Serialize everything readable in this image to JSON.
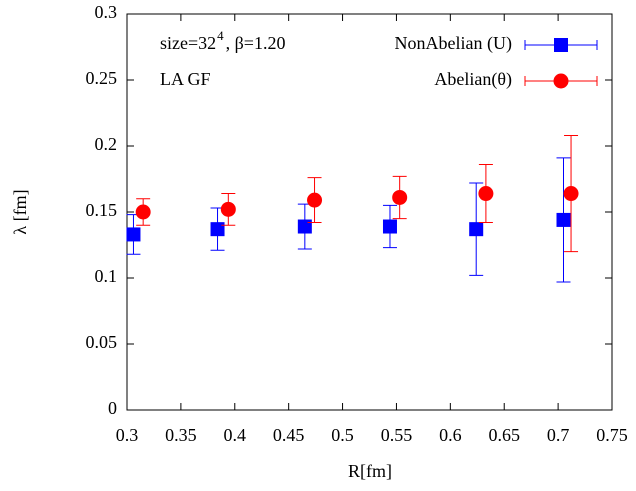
{
  "chart_data": {
    "type": "scatter",
    "xlabel": "R[fm]",
    "ylabel": "λ [fm]",
    "annotations": [
      "size=32",
      "4",
      ", β=1.20",
      "LA GF"
    ],
    "xlim": [
      0.3,
      0.75
    ],
    "xticks": [
      0.3,
      0.35,
      0.4,
      0.45,
      0.5,
      0.55,
      0.6,
      0.65,
      0.7,
      0.75
    ],
    "ylim": [
      0,
      0.3
    ],
    "yticks": [
      0,
      0.05,
      0.1,
      0.15,
      0.2,
      0.25,
      0.3
    ],
    "legend": "top-right",
    "series": [
      {
        "name": "NonAbelian (U)",
        "color": "#0000ff",
        "marker": "square",
        "x": [
          0.306,
          0.384,
          0.465,
          0.544,
          0.624,
          0.705
        ],
        "values": [
          0.133,
          0.137,
          0.139,
          0.139,
          0.137,
          0.144
        ],
        "errors": [
          0.015,
          0.016,
          0.017,
          0.016,
          0.035,
          0.047
        ]
      },
      {
        "name": "Abelian(θ)",
        "color": "#ff0000",
        "marker": "circle",
        "x": [
          0.315,
          0.394,
          0.474,
          0.553,
          0.633,
          0.712
        ],
        "values": [
          0.15,
          0.152,
          0.159,
          0.161,
          0.164,
          0.164
        ],
        "errors": [
          0.01,
          0.012,
          0.017,
          0.016,
          0.022,
          0.044
        ]
      }
    ]
  }
}
